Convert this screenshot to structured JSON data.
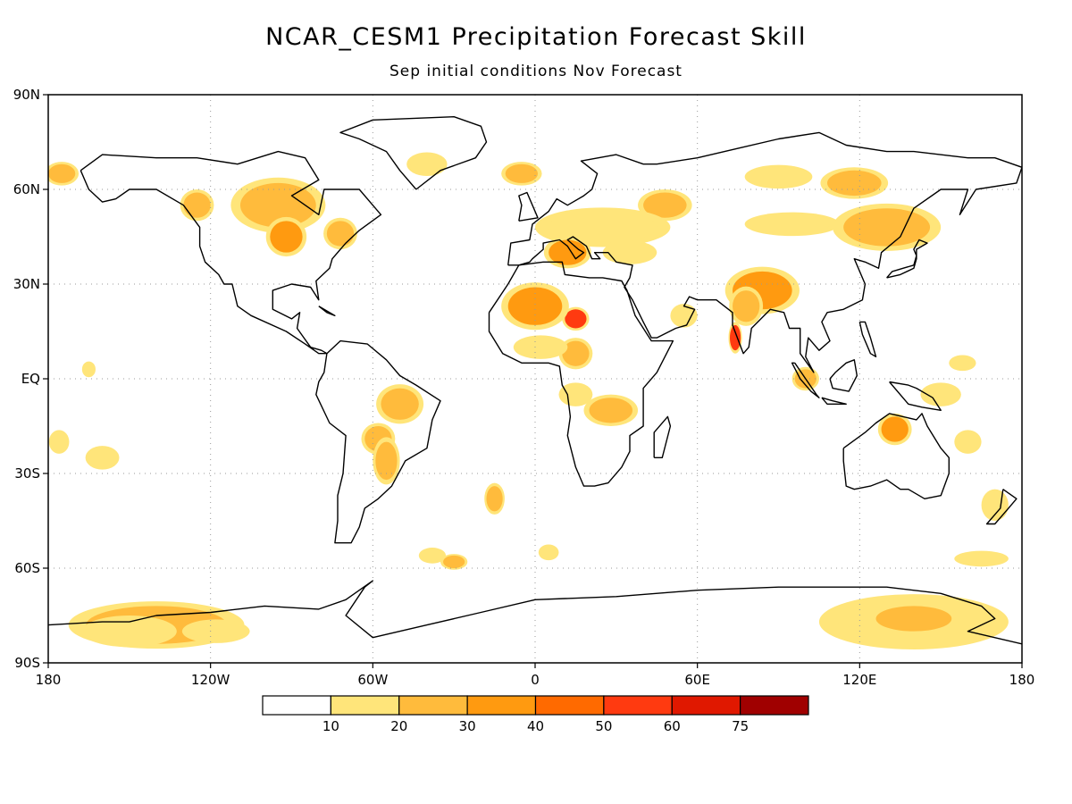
{
  "title": "NCAR_CESM1 Precipitation Forecast Skill",
  "subtitle": "Sep initial conditions   Nov Forecast",
  "map": {
    "lon_range": [
      -180,
      180
    ],
    "lat_range": [
      -90,
      90
    ],
    "grid": true,
    "lat_ticks": [
      {
        "value": 90,
        "label": "90N"
      },
      {
        "value": 60,
        "label": "60N"
      },
      {
        "value": 30,
        "label": "30N"
      },
      {
        "value": 0,
        "label": "EQ"
      },
      {
        "value": -30,
        "label": "30S"
      },
      {
        "value": -60,
        "label": "60S"
      },
      {
        "value": -90,
        "label": "90S"
      }
    ],
    "lon_ticks": [
      {
        "value": -180,
        "label": "180"
      },
      {
        "value": -120,
        "label": "120W"
      },
      {
        "value": -60,
        "label": "60W"
      },
      {
        "value": 0,
        "label": "0"
      },
      {
        "value": 60,
        "label": "60E"
      },
      {
        "value": 120,
        "label": "120E"
      },
      {
        "value": 180,
        "label": "180"
      }
    ]
  },
  "legend": {
    "colors": [
      "#ffffff",
      "#ffe57a",
      "#ffbb3c",
      "#ff9a10",
      "#ff6a00",
      "#ff3a10",
      "#e01800",
      "#a00000"
    ],
    "labels": [
      "10",
      "20",
      "30",
      "40",
      "50",
      "60",
      "75"
    ]
  },
  "skill_regions": [
    {
      "lon": -140,
      "lat": -78,
      "rx": 26,
      "ry": 6,
      "level": 2
    },
    {
      "lon": -150,
      "lat": -80,
      "rx": 14,
      "ry": 4,
      "level": 1
    },
    {
      "lon": -118,
      "lat": -80,
      "rx": 10,
      "ry": 3,
      "level": 1
    },
    {
      "lon": 140,
      "lat": -77,
      "rx": 28,
      "ry": 7,
      "level": 1
    },
    {
      "lon": 140,
      "lat": -76,
      "rx": 14,
      "ry": 4,
      "level": 2
    },
    {
      "lon": 15,
      "lat": 19,
      "rx": 4,
      "ry": 3,
      "level": 5
    },
    {
      "lon": 74,
      "lat": 13,
      "rx": 2,
      "ry": 4,
      "level": 5
    },
    {
      "lon": 0,
      "lat": 23,
      "rx": 10,
      "ry": 6,
      "level": 3
    },
    {
      "lon": 84,
      "lat": 28,
      "rx": 11,
      "ry": 6,
      "level": 3
    },
    {
      "lon": 78,
      "lat": 23,
      "rx": 5,
      "ry": 5,
      "level": 2
    },
    {
      "lon": 133,
      "lat": -16,
      "rx": 5,
      "ry": 4,
      "level": 3
    },
    {
      "lon": 130,
      "lat": 48,
      "rx": 16,
      "ry": 6,
      "level": 2
    },
    {
      "lon": 95,
      "lat": 49,
      "rx": 14,
      "ry": 3,
      "level": 1
    },
    {
      "lon": 118,
      "lat": 62,
      "rx": 10,
      "ry": 4,
      "level": 2
    },
    {
      "lon": 90,
      "lat": 64,
      "rx": 10,
      "ry": 3,
      "level": 1
    },
    {
      "lon": 48,
      "lat": 55,
      "rx": 8,
      "ry": 4,
      "level": 2
    },
    {
      "lon": 25,
      "lat": 48,
      "rx": 20,
      "ry": 5,
      "level": 1
    },
    {
      "lon": 12,
      "lat": 40,
      "rx": 7,
      "ry": 4,
      "level": 3
    },
    {
      "lon": 35,
      "lat": 40,
      "rx": 8,
      "ry": 3,
      "level": 1
    },
    {
      "lon": -95,
      "lat": 55,
      "rx": 14,
      "ry": 7,
      "level": 2
    },
    {
      "lon": -92,
      "lat": 45,
      "rx": 6,
      "ry": 5,
      "level": 3
    },
    {
      "lon": -125,
      "lat": 55,
      "rx": 5,
      "ry": 4,
      "level": 2
    },
    {
      "lon": -72,
      "lat": 46,
      "rx": 5,
      "ry": 4,
      "level": 2
    },
    {
      "lon": -175,
      "lat": 65,
      "rx": 5,
      "ry": 3,
      "level": 2
    },
    {
      "lon": -50,
      "lat": -8,
      "rx": 7,
      "ry": 5,
      "level": 2
    },
    {
      "lon": -58,
      "lat": -19,
      "rx": 5,
      "ry": 4,
      "level": 2
    },
    {
      "lon": -55,
      "lat": -26,
      "rx": 4,
      "ry": 6,
      "level": 2
    },
    {
      "lon": 28,
      "lat": -10,
      "rx": 8,
      "ry": 4,
      "level": 2
    },
    {
      "lon": 15,
      "lat": -5,
      "rx": 5,
      "ry": 3,
      "level": 1
    },
    {
      "lon": 15,
      "lat": 8,
      "rx": 5,
      "ry": 4,
      "level": 2
    },
    {
      "lon": 2,
      "lat": 10,
      "rx": 8,
      "ry": 3,
      "level": 1
    },
    {
      "lon": -15,
      "lat": -38,
      "rx": 3,
      "ry": 4,
      "level": 2
    },
    {
      "lon": -38,
      "lat": -56,
      "rx": 4,
      "ry": 2,
      "level": 1
    },
    {
      "lon": -30,
      "lat": -58,
      "rx": 4,
      "ry": 2,
      "level": 2
    },
    {
      "lon": 5,
      "lat": -55,
      "rx": 3,
      "ry": 2,
      "level": 1
    },
    {
      "lon": 165,
      "lat": -57,
      "rx": 8,
      "ry": 2,
      "level": 1
    },
    {
      "lon": 170,
      "lat": -40,
      "rx": 4,
      "ry": 4,
      "level": 1
    },
    {
      "lon": 160,
      "lat": -20,
      "rx": 4,
      "ry": 3,
      "level": 1
    },
    {
      "lon": 150,
      "lat": -5,
      "rx": 6,
      "ry": 3,
      "level": 1
    },
    {
      "lon": 158,
      "lat": 5,
      "rx": 4,
      "ry": 2,
      "level": 1
    },
    {
      "lon": -160,
      "lat": -25,
      "rx": 5,
      "ry": 3,
      "level": 1
    },
    {
      "lon": -176,
      "lat": -20,
      "rx": 3,
      "ry": 3,
      "level": 1
    },
    {
      "lon": -165,
      "lat": 3,
      "rx": 2,
      "ry": 2,
      "level": 1
    },
    {
      "lon": -40,
      "lat": 68,
      "rx": 6,
      "ry": 3,
      "level": 1
    },
    {
      "lon": -5,
      "lat": 65,
      "rx": 6,
      "ry": 3,
      "level": 2
    },
    {
      "lon": 55,
      "lat": 20,
      "rx": 4,
      "ry": 3,
      "level": 1
    },
    {
      "lon": 100,
      "lat": 0,
      "rx": 4,
      "ry": 3,
      "level": 2
    }
  ],
  "land_outlines": [
    [
      [
        -168,
        66
      ],
      [
        -160,
        71
      ],
      [
        -140,
        70
      ],
      [
        -125,
        70
      ],
      [
        -110,
        68
      ],
      [
        -95,
        72
      ],
      [
        -85,
        70
      ],
      [
        -80,
        63
      ],
      [
        -90,
        58
      ],
      [
        -80,
        52
      ],
      [
        -78,
        60
      ],
      [
        -65,
        60
      ],
      [
        -60,
        55
      ],
      [
        -57,
        52
      ],
      [
        -65,
        47
      ],
      [
        -70,
        43
      ],
      [
        -75,
        38
      ],
      [
        -76,
        35
      ],
      [
        -81,
        31
      ],
      [
        -80,
        25
      ],
      [
        -83,
        29
      ],
      [
        -90,
        30
      ],
      [
        -97,
        28
      ],
      [
        -97,
        22
      ],
      [
        -90,
        19
      ],
      [
        -87,
        21
      ],
      [
        -88,
        16
      ],
      [
        -83,
        10
      ],
      [
        -79,
        9
      ],
      [
        -77,
        8
      ],
      [
        -80,
        8
      ],
      [
        -85,
        11
      ],
      [
        -92,
        15
      ],
      [
        -105,
        20
      ],
      [
        -110,
        23
      ],
      [
        -112,
        30
      ],
      [
        -115,
        30
      ],
      [
        -117,
        33
      ],
      [
        -122,
        37
      ],
      [
        -124,
        42
      ],
      [
        -124,
        48
      ],
      [
        -130,
        55
      ],
      [
        -140,
        60
      ],
      [
        -150,
        60
      ],
      [
        -155,
        57
      ],
      [
        -160,
        56
      ],
      [
        -165,
        60
      ],
      [
        -168,
        66
      ]
    ],
    [
      [
        -77,
        8
      ],
      [
        -72,
        12
      ],
      [
        -62,
        11
      ],
      [
        -55,
        6
      ],
      [
        -50,
        1
      ],
      [
        -44,
        -2
      ],
      [
        -35,
        -7
      ],
      [
        -38,
        -13
      ],
      [
        -40,
        -22
      ],
      [
        -48,
        -26
      ],
      [
        -53,
        -34
      ],
      [
        -58,
        -38
      ],
      [
        -63,
        -41
      ],
      [
        -65,
        -47
      ],
      [
        -68,
        -52
      ],
      [
        -74,
        -52
      ],
      [
        -73,
        -45
      ],
      [
        -73,
        -37
      ],
      [
        -71,
        -30
      ],
      [
        -70,
        -18
      ],
      [
        -76,
        -14
      ],
      [
        -81,
        -5
      ],
      [
        -80,
        -1
      ],
      [
        -78,
        2
      ],
      [
        -77,
        8
      ]
    ],
    [
      [
        -44,
        60
      ],
      [
        -50,
        66
      ],
      [
        -55,
        72
      ],
      [
        -65,
        76
      ],
      [
        -72,
        78
      ],
      [
        -60,
        82
      ],
      [
        -30,
        83
      ],
      [
        -20,
        80
      ],
      [
        -18,
        75
      ],
      [
        -22,
        70
      ],
      [
        -35,
        66
      ],
      [
        -44,
        60
      ]
    ],
    [
      [
        -17,
        21
      ],
      [
        -17,
        15
      ],
      [
        -12,
        8
      ],
      [
        -5,
        5
      ],
      [
        5,
        5
      ],
      [
        9,
        4
      ],
      [
        10,
        -2
      ],
      [
        12,
        -5
      ],
      [
        13,
        -12
      ],
      [
        12,
        -18
      ],
      [
        15,
        -28
      ],
      [
        18,
        -34
      ],
      [
        22,
        -34
      ],
      [
        27,
        -33
      ],
      [
        32,
        -28
      ],
      [
        35,
        -23
      ],
      [
        35,
        -18
      ],
      [
        40,
        -15
      ],
      [
        40,
        -10
      ],
      [
        40,
        -3
      ],
      [
        45,
        2
      ],
      [
        51,
        12
      ],
      [
        43,
        12
      ],
      [
        37,
        20
      ],
      [
        34,
        28
      ],
      [
        32,
        31
      ],
      [
        25,
        32
      ],
      [
        20,
        32
      ],
      [
        11,
        33
      ],
      [
        10,
        37
      ],
      [
        3,
        37
      ],
      [
        -6,
        36
      ],
      [
        -10,
        30
      ],
      [
        -17,
        21
      ]
    ],
    [
      [
        -10,
        36
      ],
      [
        -9,
        43
      ],
      [
        -2,
        44
      ],
      [
        -1,
        49
      ],
      [
        5,
        53
      ],
      [
        8,
        57
      ],
      [
        12,
        55
      ],
      [
        18,
        58
      ],
      [
        21,
        60
      ],
      [
        23,
        65
      ],
      [
        17,
        69
      ],
      [
        30,
        71
      ],
      [
        40,
        68
      ],
      [
        45,
        68
      ],
      [
        60,
        70
      ],
      [
        75,
        73
      ],
      [
        90,
        76
      ],
      [
        105,
        78
      ],
      [
        115,
        74
      ],
      [
        130,
        72
      ],
      [
        140,
        72
      ],
      [
        160,
        70
      ],
      [
        170,
        70
      ],
      [
        180,
        67
      ],
      [
        178,
        62
      ],
      [
        163,
        60
      ],
      [
        157,
        52
      ],
      [
        160,
        60
      ],
      [
        150,
        60
      ],
      [
        140,
        54
      ],
      [
        135,
        45
      ],
      [
        128,
        40
      ],
      [
        127,
        35
      ],
      [
        122,
        37
      ],
      [
        118,
        38
      ],
      [
        122,
        30
      ],
      [
        121,
        25
      ],
      [
        114,
        22
      ],
      [
        108,
        21
      ],
      [
        106,
        18
      ],
      [
        109,
        12
      ],
      [
        105,
        9
      ],
      [
        101,
        13
      ],
      [
        100,
        7
      ],
      [
        103,
        2
      ],
      [
        98,
        8
      ],
      [
        98,
        16
      ],
      [
        94,
        16
      ],
      [
        92,
        21
      ],
      [
        87,
        22
      ],
      [
        80,
        16
      ],
      [
        79,
        10
      ],
      [
        77,
        8
      ],
      [
        73,
        17
      ],
      [
        73,
        21
      ],
      [
        67,
        25
      ],
      [
        60,
        25
      ],
      [
        57,
        26
      ],
      [
        55,
        23
      ],
      [
        59,
        22
      ],
      [
        56,
        17
      ],
      [
        52,
        16
      ],
      [
        45,
        13
      ],
      [
        43,
        13
      ],
      [
        40,
        18
      ],
      [
        36,
        25
      ],
      [
        33,
        29
      ],
      [
        35,
        32
      ],
      [
        36,
        36
      ],
      [
        30,
        37
      ],
      [
        27,
        40
      ],
      [
        22,
        40
      ],
      [
        24,
        38
      ],
      [
        21,
        38
      ],
      [
        19,
        42
      ],
      [
        14,
        45
      ],
      [
        12,
        44
      ],
      [
        16,
        41
      ],
      [
        18,
        40
      ],
      [
        15,
        38
      ],
      [
        12,
        42
      ],
      [
        9,
        44
      ],
      [
        3,
        43
      ],
      [
        3,
        41
      ],
      [
        -1,
        38
      ],
      [
        -2,
        37
      ],
      [
        -6,
        36
      ],
      [
        -10,
        36
      ]
    ],
    [
      [
        -6,
        50
      ],
      [
        -5,
        55
      ],
      [
        -6,
        58
      ],
      [
        -3,
        59
      ],
      [
        0,
        53
      ],
      [
        1,
        51
      ],
      [
        -6,
        50
      ]
    ],
    [
      [
        114,
        -22
      ],
      [
        114,
        -26
      ],
      [
        115,
        -34
      ],
      [
        118,
        -35
      ],
      [
        124,
        -34
      ],
      [
        130,
        -32
      ],
      [
        135,
        -35
      ],
      [
        138,
        -35
      ],
      [
        144,
        -38
      ],
      [
        150,
        -37
      ],
      [
        153,
        -30
      ],
      [
        153,
        -25
      ],
      [
        150,
        -22
      ],
      [
        145,
        -15
      ],
      [
        143,
        -11
      ],
      [
        141,
        -13
      ],
      [
        136,
        -12
      ],
      [
        131,
        -11
      ],
      [
        126,
        -14
      ],
      [
        122,
        -17
      ],
      [
        114,
        -22
      ]
    ],
    [
      [
        -180,
        -78
      ],
      [
        -160,
        -77
      ],
      [
        -150,
        -77
      ],
      [
        -140,
        -75
      ],
      [
        -120,
        -74
      ],
      [
        -100,
        -72
      ],
      [
        -80,
        -73
      ],
      [
        -70,
        -70
      ],
      [
        -60,
        -64
      ],
      [
        -63,
        -66
      ],
      [
        -70,
        -75
      ],
      [
        -60,
        -82
      ],
      [
        -40,
        -78
      ],
      [
        -20,
        -74
      ],
      [
        0,
        -70
      ],
      [
        30,
        -69
      ],
      [
        60,
        -67
      ],
      [
        90,
        -66
      ],
      [
        110,
        -66
      ],
      [
        130,
        -66
      ],
      [
        150,
        -68
      ],
      [
        165,
        -72
      ],
      [
        170,
        -76
      ],
      [
        160,
        -80
      ],
      [
        180,
        -84
      ]
    ],
    [
      [
        130,
        32
      ],
      [
        132,
        34
      ],
      [
        136,
        35
      ],
      [
        140,
        36
      ],
      [
        141,
        39
      ],
      [
        140,
        41
      ],
      [
        142,
        44
      ],
      [
        145,
        43
      ],
      [
        141,
        41
      ],
      [
        141,
        38
      ],
      [
        140,
        35
      ],
      [
        135,
        33
      ],
      [
        130,
        32
      ]
    ],
    [
      [
        96,
        5
      ],
      [
        100,
        0
      ],
      [
        104,
        -5
      ],
      [
        105,
        -6
      ],
      [
        102,
        -4
      ],
      [
        98,
        0
      ],
      [
        95,
        5
      ],
      [
        96,
        5
      ]
    ],
    [
      [
        106,
        -6
      ],
      [
        110,
        -7
      ],
      [
        115,
        -8
      ],
      [
        114,
        -8
      ],
      [
        108,
        -8
      ],
      [
        106,
        -6
      ]
    ],
    [
      [
        109,
        0
      ],
      [
        111,
        2
      ],
      [
        115,
        5
      ],
      [
        118,
        6
      ],
      [
        119,
        1
      ],
      [
        116,
        -4
      ],
      [
        110,
        -3
      ],
      [
        109,
        0
      ]
    ],
    [
      [
        131,
        -1
      ],
      [
        138,
        -2
      ],
      [
        141,
        -3
      ],
      [
        147,
        -6
      ],
      [
        150,
        -10
      ],
      [
        143,
        -9
      ],
      [
        138,
        -8
      ],
      [
        131,
        -1
      ]
    ],
    [
      [
        173,
        -35
      ],
      [
        178,
        -38
      ],
      [
        175,
        -41
      ],
      [
        170,
        -46
      ],
      [
        167,
        -46
      ],
      [
        172,
        -41
      ],
      [
        173,
        -35
      ]
    ],
    [
      [
        44,
        -25
      ],
      [
        47,
        -25
      ],
      [
        50,
        -15
      ],
      [
        49,
        -12
      ],
      [
        44,
        -17
      ],
      [
        44,
        -25
      ]
    ],
    [
      [
        120,
        18
      ],
      [
        122,
        18
      ],
      [
        124,
        13
      ],
      [
        126,
        7
      ],
      [
        124,
        8
      ],
      [
        121,
        14
      ],
      [
        120,
        18
      ]
    ],
    [
      [
        -80,
        23
      ],
      [
        -74,
        20
      ],
      [
        -77,
        21
      ],
      [
        -80,
        23
      ]
    ]
  ]
}
